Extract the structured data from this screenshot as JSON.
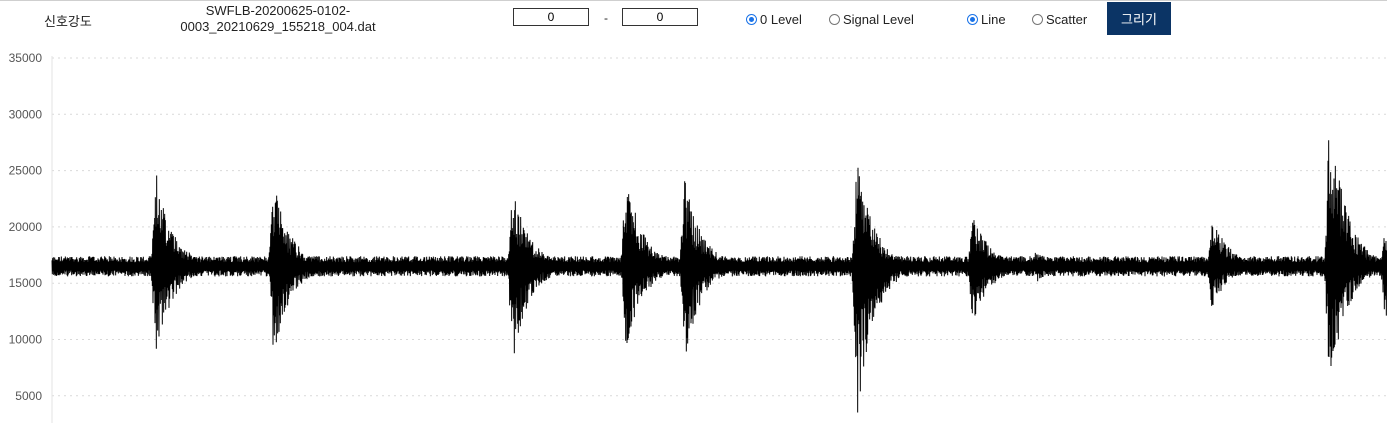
{
  "toolbar": {
    "label": "신호강도",
    "filename": "SWFLB-20200625-0102-0003_20210629_155218_004.dat",
    "range_from": "0",
    "range_separator": "-",
    "range_to": "0",
    "radio_zero_level": "0 Level",
    "radio_signal_level": "Signal Level",
    "radio_line": "Line",
    "radio_scatter": "Scatter",
    "draw_button": "그리기",
    "selected_level": "0 Level",
    "selected_style": "Line"
  },
  "colors": {
    "accent": "#0b3465",
    "radio": "#1a73e8",
    "line": "#000000",
    "grid": "#d9d9d9"
  },
  "chart_data": {
    "type": "line",
    "y_ticks": [
      "35000",
      "30000",
      "25000",
      "20000",
      "15000",
      "10000",
      "5000"
    ],
    "ylim": [
      3000,
      35000
    ],
    "grid": true,
    "series": [
      {
        "baseline": 16500,
        "baseline_amplitude": 900,
        "bursts": [
          {
            "center": 0.078,
            "min": 8500,
            "max": 25000
          },
          {
            "center": 0.166,
            "min": 8500,
            "max": 24000
          },
          {
            "center": 0.345,
            "min": 7800,
            "max": 23700
          },
          {
            "center": 0.43,
            "min": 8700,
            "max": 24800
          },
          {
            "center": 0.474,
            "min": 8100,
            "max": 24300
          },
          {
            "center": 0.603,
            "min": 3000,
            "max": 26000
          },
          {
            "center": 0.69,
            "min": 11200,
            "max": 21200
          },
          {
            "center": 0.737,
            "min": 15000,
            "max": 18000
          },
          {
            "center": 0.869,
            "min": 12600,
            "max": 21100
          },
          {
            "center": 0.957,
            "min": 5700,
            "max": 30100
          },
          {
            "center": 0.999,
            "min": 11300,
            "max": 20700
          }
        ]
      }
    ]
  }
}
